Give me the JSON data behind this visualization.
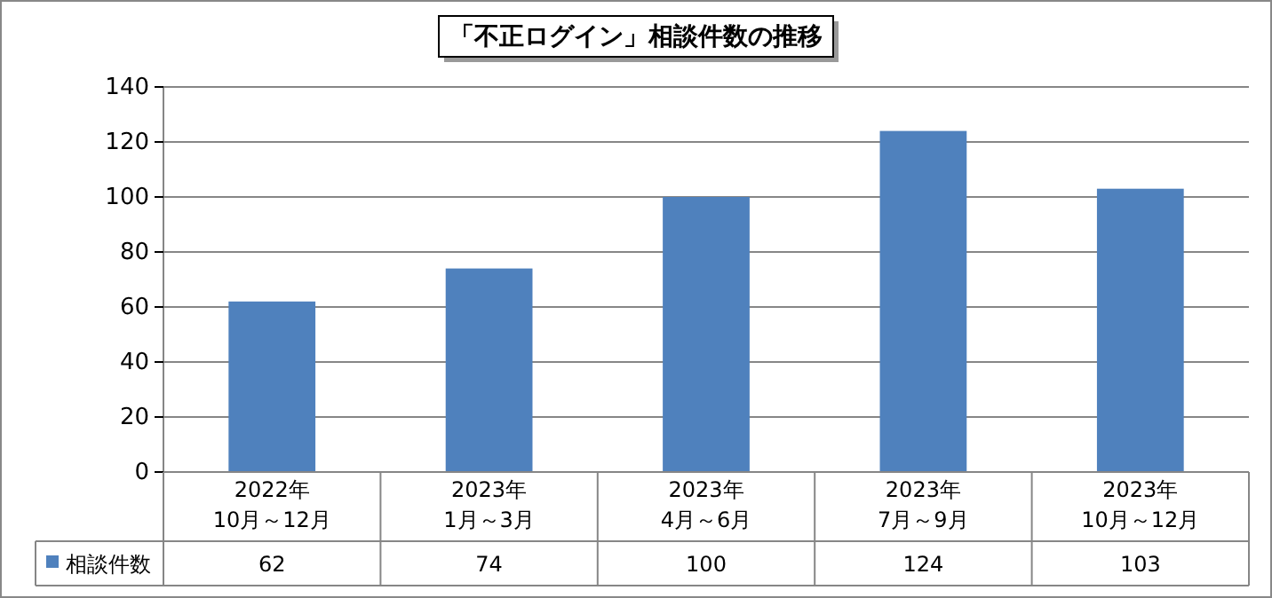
{
  "chart_data": {
    "type": "bar",
    "title": "「不正ログイン」相談件数の推移",
    "categories": [
      "2022年\n10月～12月",
      "2023年\n1月～3月",
      "2023年\n4月～6月",
      "2023年\n7月～9月",
      "2023年\n10月～12月"
    ],
    "series": [
      {
        "name": "相談件数",
        "color": "#4f81bd",
        "values": [
          62,
          74,
          100,
          124,
          103
        ]
      }
    ],
    "ylim": [
      0,
      140
    ],
    "yticks": [
      0,
      20,
      40,
      60,
      80,
      100,
      120,
      140
    ],
    "grid": "y",
    "data_labels": true,
    "legend": "bottom left"
  }
}
